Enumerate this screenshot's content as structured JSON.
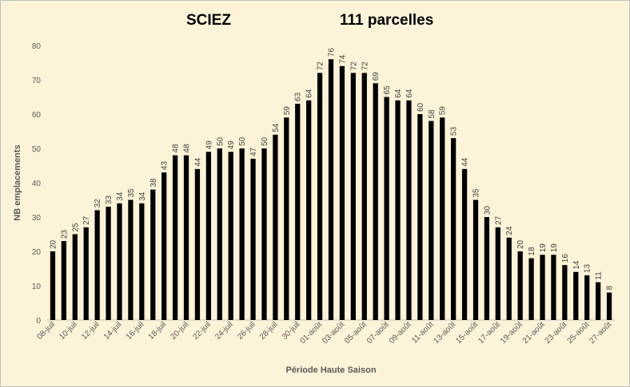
{
  "chart_data": {
    "type": "bar",
    "title": "SCIEZ",
    "subtitle": "111 parcelles",
    "xlabel": "Période Haute Saison",
    "ylabel": "NB emplacements",
    "ylim": [
      0,
      80
    ],
    "yticks": [
      0,
      10,
      20,
      30,
      40,
      50,
      60,
      70,
      80
    ],
    "grid": false,
    "legend": "none",
    "bar_color": "#000000",
    "background": "#fdf3d8",
    "categories": [
      "08-juil",
      "09-juil",
      "10-juil",
      "11-juil",
      "12-juil",
      "13-juil",
      "14-juil",
      "15-juil",
      "16-juil",
      "17-juil",
      "18-juil",
      "19-juil",
      "20-juil",
      "21-juil",
      "22-juil",
      "23-juil",
      "24-juil",
      "25-juil",
      "26-juil",
      "27-juil",
      "28-juil",
      "29-juil",
      "30-juil",
      "31-juil",
      "01-août",
      "02-août",
      "03-août",
      "04-août",
      "05-août",
      "06-août",
      "07-août",
      "08-août",
      "09-août",
      "10-août",
      "11-août",
      "12-août",
      "13-août",
      "14-août",
      "15-août",
      "16-août",
      "17-août",
      "18-août",
      "19-août",
      "20-août",
      "21-août",
      "22-août",
      "23-août",
      "24-août",
      "25-août",
      "26-août",
      "27-août"
    ],
    "values": [
      20,
      23,
      25,
      27,
      32,
      33,
      34,
      35,
      34,
      38,
      43,
      48,
      48,
      44,
      49,
      50,
      49,
      50,
      47,
      50,
      54,
      59,
      63,
      64,
      72,
      76,
      74,
      72,
      72,
      69,
      65,
      64,
      64,
      60,
      58,
      59,
      53,
      44,
      35,
      30,
      27,
      24,
      20,
      18,
      19,
      19,
      16,
      14,
      13,
      11,
      8
    ],
    "tick_labels_shown": [
      "08-juil",
      "10-juil",
      "12-juil",
      "14-juil",
      "16-juil",
      "18-juil",
      "20-juil",
      "22-juil",
      "24-juil",
      "26-juil",
      "28-juil",
      "30-juil",
      "01-août",
      "03-août",
      "05-août",
      "07-août",
      "09-août",
      "11-août",
      "13-août",
      "15-août",
      "17-août",
      "19-août",
      "21-août",
      "23-août",
      "25-août",
      "27-août"
    ]
  }
}
